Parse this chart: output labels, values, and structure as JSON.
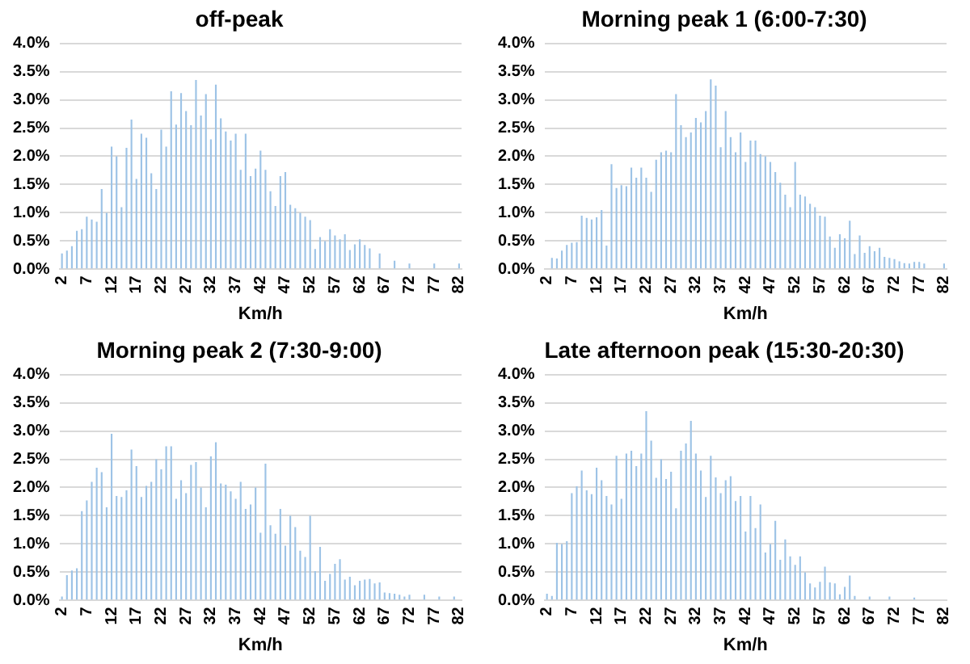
{
  "chart_data": [
    {
      "type": "bar",
      "title": "off-peak",
      "xlabel": "Km/h",
      "color": "#9dc3e6",
      "grid": "y",
      "legend": false,
      "categories": [
        "2",
        null,
        null,
        null,
        null,
        "7",
        null,
        null,
        null,
        null,
        "12",
        null,
        null,
        null,
        null,
        "17",
        null,
        null,
        null,
        null,
        "22",
        null,
        null,
        null,
        null,
        "27",
        null,
        null,
        null,
        null,
        "32",
        null,
        null,
        null,
        null,
        "37",
        null,
        null,
        null,
        null,
        "42",
        null,
        null,
        null,
        null,
        "47",
        null,
        null,
        null,
        null,
        "52",
        null,
        null,
        null,
        null,
        "57",
        null,
        null,
        null,
        null,
        "62",
        null,
        null,
        null,
        null,
        "67",
        null,
        null,
        null,
        null,
        "72",
        null,
        null,
        null,
        null,
        "77",
        null,
        null,
        null,
        null,
        "82"
      ],
      "values": [
        0.28,
        0.33,
        0.41,
        0.68,
        0.71,
        0.93,
        0.88,
        0.84,
        1.42,
        1.0,
        2.17,
        2.0,
        1.1,
        2.15,
        2.65,
        1.6,
        2.4,
        2.33,
        1.7,
        1.42,
        2.47,
        2.17,
        3.15,
        2.56,
        3.12,
        2.8,
        2.55,
        3.35,
        2.72,
        3.1,
        2.3,
        3.27,
        2.67,
        2.44,
        2.28,
        2.4,
        1.76,
        2.4,
        1.65,
        1.78,
        2.1,
        1.76,
        1.38,
        1.12,
        1.65,
        1.72,
        1.14,
        1.08,
        1.0,
        0.93,
        0.87,
        0.36,
        0.57,
        0.5,
        0.71,
        0.6,
        0.53,
        0.62,
        0.34,
        0.44,
        0.53,
        0.43,
        0.37,
        0,
        0.28,
        0,
        0,
        0.15,
        0,
        0,
        0.1,
        0,
        0,
        0,
        0,
        0.1,
        0,
        0,
        0,
        0,
        0.1
      ],
      "ylim": [
        0,
        4
      ],
      "yticks": [
        {
          "value": 0,
          "label": "0.0%"
        },
        {
          "value": 0.5,
          "label": "0.5%"
        },
        {
          "value": 1,
          "label": "1.0%"
        },
        {
          "value": 1.5,
          "label": "1.5%"
        },
        {
          "value": 2,
          "label": "2.0%"
        },
        {
          "value": 2.5,
          "label": "2.5%"
        },
        {
          "value": 3,
          "label": "3.0%"
        },
        {
          "value": 3.5,
          "label": "3.5%"
        },
        {
          "value": 4,
          "label": "4.0%"
        }
      ]
    },
    {
      "type": "bar",
      "title": "Morning peak 1 (6:00-7:30)",
      "xlabel": "Km/h",
      "color": "#9dc3e6",
      "grid": "y",
      "legend": false,
      "categories": [
        "2",
        null,
        null,
        null,
        null,
        "7",
        null,
        null,
        null,
        null,
        "12",
        null,
        null,
        null,
        null,
        "17",
        null,
        null,
        null,
        null,
        "22",
        null,
        null,
        null,
        null,
        "27",
        null,
        null,
        null,
        null,
        "32",
        null,
        null,
        null,
        null,
        "37",
        null,
        null,
        null,
        null,
        "42",
        null,
        null,
        null,
        null,
        "47",
        null,
        null,
        null,
        null,
        "52",
        null,
        null,
        null,
        null,
        "57",
        null,
        null,
        null,
        null,
        "62",
        null,
        null,
        null,
        null,
        "67",
        null,
        null,
        null,
        null,
        "72",
        null,
        null,
        null,
        null,
        "77",
        null,
        null,
        null,
        null,
        "82"
      ],
      "values": [
        0,
        0.2,
        0.19,
        0.33,
        0.43,
        0.47,
        0.48,
        0.95,
        0.91,
        0.88,
        0.92,
        1.05,
        0.42,
        1.86,
        1.44,
        1.49,
        1.47,
        1.8,
        1.62,
        1.8,
        1.62,
        1.37,
        1.94,
        2.07,
        2.1,
        2.07,
        3.1,
        2.55,
        2.34,
        2.42,
        2.68,
        2.6,
        2.8,
        3.36,
        3.25,
        2.16,
        2.8,
        2.34,
        2.07,
        2.42,
        1.9,
        2.28,
        2.28,
        2.04,
        2.0,
        1.9,
        1.72,
        1.53,
        1.32,
        1.1,
        1.9,
        1.32,
        1.29,
        1.16,
        1.1,
        0.95,
        0.93,
        0.58,
        0.38,
        0.62,
        0.55,
        0.86,
        0.27,
        0.6,
        0.29,
        0.41,
        0.32,
        0.38,
        0.22,
        0.2,
        0.18,
        0.14,
        0.11,
        0.1,
        0.13,
        0.13,
        0.1,
        0,
        0,
        0,
        0.1
      ],
      "ylim": [
        0,
        4
      ],
      "yticks": [
        {
          "value": 0,
          "label": "0.0%"
        },
        {
          "value": 0.5,
          "label": "0.5%"
        },
        {
          "value": 1,
          "label": "1.0%"
        },
        {
          "value": 1.5,
          "label": "1.5%"
        },
        {
          "value": 2,
          "label": "2.0%"
        },
        {
          "value": 2.5,
          "label": "2.5%"
        },
        {
          "value": 3,
          "label": "3.0%"
        },
        {
          "value": 3.5,
          "label": "3.5%"
        },
        {
          "value": 4,
          "label": "4.0%"
        }
      ]
    },
    {
      "type": "bar",
      "title": "Morning peak 2 (7:30-9:00)",
      "xlabel": "Km/h",
      "color": "#9dc3e6",
      "grid": "y",
      "legend": false,
      "categories": [
        "2",
        null,
        null,
        null,
        null,
        "7",
        null,
        null,
        null,
        null,
        "12",
        null,
        null,
        null,
        null,
        "17",
        null,
        null,
        null,
        null,
        "22",
        null,
        null,
        null,
        null,
        "27",
        null,
        null,
        null,
        null,
        "32",
        null,
        null,
        null,
        null,
        "37",
        null,
        null,
        null,
        null,
        "42",
        null,
        null,
        null,
        null,
        "47",
        null,
        null,
        null,
        null,
        "52",
        null,
        null,
        null,
        null,
        "57",
        null,
        null,
        null,
        null,
        "62",
        null,
        null,
        null,
        null,
        "67",
        null,
        null,
        null,
        null,
        "72",
        null,
        null,
        null,
        null,
        "77",
        null,
        null,
        null,
        null,
        "82"
      ],
      "values": [
        0.07,
        0.45,
        0.53,
        0.57,
        1.58,
        1.77,
        2.1,
        2.35,
        2.27,
        1.65,
        2.95,
        1.85,
        1.83,
        1.95,
        2.67,
        2.38,
        1.83,
        2.03,
        2.1,
        2.5,
        2.32,
        2.73,
        2.73,
        1.8,
        2.13,
        1.9,
        2.4,
        2.45,
        2.0,
        1.65,
        2.55,
        2.8,
        2.07,
        2.05,
        1.93,
        1.8,
        2.1,
        1.62,
        1.7,
        2.0,
        1.2,
        2.42,
        1.33,
        1.18,
        1.62,
        0.97,
        1.5,
        1.3,
        0.88,
        0.77,
        1.5,
        0.52,
        0.95,
        0.35,
        0.47,
        0.65,
        0.73,
        0.37,
        0.42,
        0.27,
        0.35,
        0.37,
        0.38,
        0.3,
        0.32,
        0.14,
        0.13,
        0.12,
        0.1,
        0.07,
        0.1,
        0,
        0,
        0.1,
        0,
        0,
        0.07,
        0,
        0,
        0.07,
        0
      ],
      "ylim": [
        0,
        4
      ],
      "yticks": [
        {
          "value": 0,
          "label": "0.0%"
        },
        {
          "value": 0.5,
          "label": "0.5%"
        },
        {
          "value": 1,
          "label": "1.0%"
        },
        {
          "value": 1.5,
          "label": "1.5%"
        },
        {
          "value": 2,
          "label": "2.0%"
        },
        {
          "value": 2.5,
          "label": "2.5%"
        },
        {
          "value": 3,
          "label": "3.0%"
        },
        {
          "value": 3.5,
          "label": "3.5%"
        },
        {
          "value": 4,
          "label": "4.0%"
        }
      ]
    },
    {
      "type": "bar",
      "title": "Late afternoon peak (15:30-20:30)",
      "xlabel": "Km/h",
      "color": "#9dc3e6",
      "grid": "y",
      "legend": false,
      "categories": [
        "2",
        null,
        null,
        null,
        null,
        "7",
        null,
        null,
        null,
        null,
        "12",
        null,
        null,
        null,
        null,
        "17",
        null,
        null,
        null,
        null,
        "22",
        null,
        null,
        null,
        null,
        "27",
        null,
        null,
        null,
        null,
        "32",
        null,
        null,
        null,
        null,
        "37",
        null,
        null,
        null,
        null,
        "42",
        null,
        null,
        null,
        null,
        "47",
        null,
        null,
        null,
        null,
        "52",
        null,
        null,
        null,
        null,
        "57",
        null,
        null,
        null,
        null,
        "62",
        null,
        null,
        null,
        null,
        "67",
        null,
        null,
        null,
        null,
        "72",
        null,
        null,
        null,
        null,
        "77",
        null,
        null,
        null,
        null,
        "82"
      ],
      "values": [
        0.12,
        0.08,
        1.02,
        1.0,
        1.05,
        1.9,
        2.02,
        2.3,
        1.95,
        1.88,
        2.35,
        2.13,
        1.85,
        1.7,
        2.56,
        1.8,
        2.6,
        2.65,
        2.38,
        2.6,
        3.35,
        2.83,
        2.17,
        2.5,
        2.15,
        2.28,
        1.63,
        2.65,
        2.78,
        3.18,
        2.6,
        2.3,
        1.83,
        2.56,
        2.18,
        1.9,
        2.13,
        2.2,
        1.76,
        1.85,
        1.22,
        1.85,
        1.28,
        1.7,
        0.85,
        1.0,
        1.41,
        0.72,
        1.08,
        0.78,
        0.63,
        0.78,
        0.5,
        0.3,
        0.23,
        0.33,
        0.6,
        0.32,
        0.3,
        0.11,
        0.24,
        0.44,
        0.08,
        0,
        0,
        0.07,
        0,
        0,
        0,
        0.07,
        0,
        0,
        0,
        0,
        0.05,
        0,
        0,
        0,
        0,
        0,
        0
      ],
      "ylim": [
        0,
        4
      ],
      "yticks": [
        {
          "value": 0,
          "label": "0.0%"
        },
        {
          "value": 0.5,
          "label": "0.5%"
        },
        {
          "value": 1,
          "label": "1.0%"
        },
        {
          "value": 1.5,
          "label": "1.5%"
        },
        {
          "value": 2,
          "label": "2.0%"
        },
        {
          "value": 2.5,
          "label": "2.5%"
        },
        {
          "value": 3,
          "label": "3.0%"
        },
        {
          "value": 3.5,
          "label": "3.5%"
        },
        {
          "value": 4,
          "label": "4.0%"
        }
      ]
    }
  ]
}
